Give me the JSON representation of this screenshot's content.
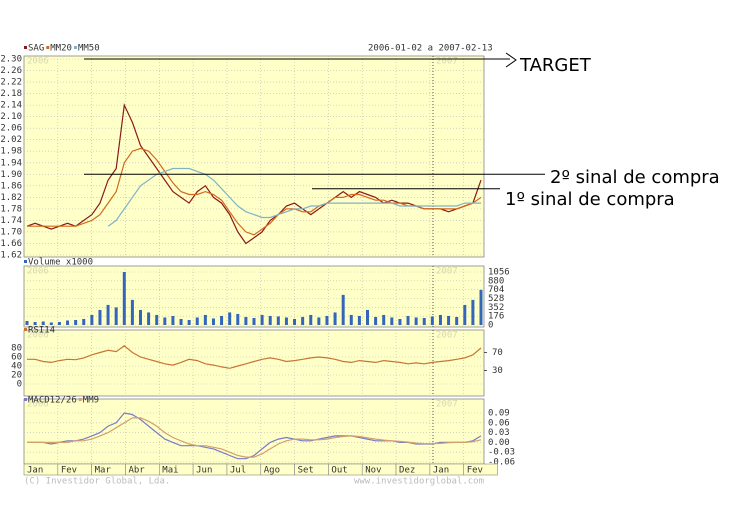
{
  "header": {
    "date_range": "2006-01-02 a 2007-02-13",
    "year_labels": [
      "2006",
      "2007"
    ]
  },
  "footer": {
    "copyright": "(C) Investidor Global, Lda.",
    "site": "www.investidorglobal.com"
  },
  "chart_data": [
    {
      "type": "line",
      "ylim": [
        1.62,
        2.3
      ],
      "yticks": [
        1.62,
        1.66,
        {
          "value": 1.7,
          "label": "1.70"
        },
        1.74,
        1.78,
        1.82,
        1.86,
        {
          "value": 1.9,
          "label": "1.90"
        },
        1.94,
        1.98,
        2.02,
        2.06,
        {
          "value": 2.1,
          "label": "2.10"
        },
        2.14,
        2.18,
        2.22,
        2.26,
        {
          "value": 2.3,
          "label": "2.30"
        }
      ],
      "grid": true,
      "series": [
        {
          "name": "SAG",
          "color": "#8b1a1a",
          "values": [
            1.72,
            1.73,
            1.72,
            1.71,
            1.72,
            1.73,
            1.72,
            1.74,
            1.76,
            1.8,
            1.88,
            1.92,
            2.14,
            2.08,
            2.0,
            1.96,
            1.92,
            1.88,
            1.84,
            1.82,
            1.8,
            1.84,
            1.86,
            1.82,
            1.8,
            1.76,
            1.7,
            1.66,
            1.68,
            1.7,
            1.74,
            1.76,
            1.79,
            1.8,
            1.78,
            1.76,
            1.78,
            1.8,
            1.82,
            1.84,
            1.82,
            1.84,
            1.83,
            1.82,
            1.8,
            1.81,
            1.8,
            1.8,
            1.79,
            1.78,
            1.78,
            1.78,
            1.77,
            1.78,
            1.79,
            1.8,
            1.88
          ]
        },
        {
          "name": "MM20",
          "color": "#d2691e",
          "values": [
            1.72,
            1.72,
            1.72,
            1.72,
            1.72,
            1.72,
            1.72,
            1.73,
            1.74,
            1.76,
            1.8,
            1.84,
            1.94,
            1.98,
            1.99,
            1.98,
            1.95,
            1.91,
            1.87,
            1.84,
            1.83,
            1.83,
            1.84,
            1.83,
            1.81,
            1.77,
            1.73,
            1.7,
            1.69,
            1.71,
            1.73,
            1.76,
            1.78,
            1.78,
            1.77,
            1.77,
            1.79,
            1.8,
            1.82,
            1.82,
            1.83,
            1.83,
            1.82,
            1.81,
            1.81,
            1.8,
            1.8,
            1.79,
            1.79,
            1.78,
            1.78,
            1.78,
            1.78,
            1.78,
            1.79,
            1.8,
            1.82
          ]
        },
        {
          "name": "MM50",
          "color": "#7fb3c8",
          "values": [
            null,
            null,
            null,
            null,
            null,
            null,
            null,
            null,
            null,
            null,
            1.72,
            1.74,
            1.78,
            1.82,
            1.86,
            1.88,
            1.9,
            1.91,
            1.92,
            1.92,
            1.92,
            1.91,
            1.9,
            1.88,
            1.85,
            1.82,
            1.79,
            1.77,
            1.76,
            1.75,
            1.75,
            1.76,
            1.77,
            1.78,
            1.78,
            1.79,
            1.79,
            1.8,
            1.8,
            1.8,
            1.8,
            1.8,
            1.8,
            1.8,
            1.8,
            1.8,
            1.79,
            1.79,
            1.79,
            1.79,
            1.79,
            1.79,
            1.79,
            1.79,
            1.8,
            1.8,
            1.8
          ]
        }
      ],
      "annotations": [
        {
          "text": "TARGET",
          "y": 2.3
        },
        {
          "text": "2º sinal de compra",
          "y": 1.9
        },
        {
          "text": "1º sinal de compra",
          "y": 1.85
        }
      ]
    },
    {
      "type": "bar",
      "ylim": [
        0,
        1056
      ],
      "yticks": [
        0,
        176,
        352,
        528,
        704,
        880,
        1056
      ],
      "series": [
        {
          "name": "Volume x1000",
          "color": "#3366bb",
          "values": [
            80,
            60,
            70,
            50,
            60,
            90,
            100,
            120,
            200,
            300,
            400,
            350,
            1056,
            500,
            300,
            250,
            200,
            150,
            180,
            120,
            100,
            150,
            200,
            130,
            180,
            250,
            220,
            160,
            140,
            200,
            180,
            170,
            150,
            120,
            160,
            200,
            150,
            180,
            250,
            600,
            200,
            180,
            300,
            160,
            200,
            150,
            120,
            180,
            150,
            140,
            170,
            200,
            180,
            160,
            400,
            500,
            700
          ]
        }
      ]
    },
    {
      "type": "line",
      "ylim": [
        0,
        100
      ],
      "yticks": [
        0,
        20,
        40,
        60,
        80
      ],
      "y2lim": [
        0,
        100
      ],
      "y2ticks": [
        70,
        30
      ],
      "series": [
        {
          "name": "RSI14",
          "color": "#c87533",
          "values": [
            55,
            55,
            50,
            48,
            52,
            55,
            54,
            58,
            65,
            70,
            75,
            72,
            85,
            70,
            60,
            55,
            50,
            45,
            42,
            48,
            55,
            52,
            45,
            42,
            38,
            35,
            40,
            45,
            50,
            55,
            58,
            55,
            50,
            52,
            55,
            58,
            60,
            58,
            55,
            50,
            48,
            52,
            50,
            48,
            52,
            50,
            48,
            45,
            47,
            45,
            48,
            50,
            52,
            55,
            58,
            65,
            80
          ]
        }
      ]
    },
    {
      "type": "line",
      "ylim": [
        -0.06,
        0.09
      ],
      "yticks": [
        0.09,
        0.06,
        0.03,
        {
          "value": 0,
          "label": "0.00"
        },
        -0.03,
        -0.06
      ],
      "x_axis_labels": [
        "Jan",
        "Fev",
        "Mar",
        "Abr",
        "Mai",
        "Jun",
        "Jul",
        "Ago",
        "Set",
        "Out",
        "Nov",
        "Dez",
        "Jan",
        "Fev"
      ],
      "series": [
        {
          "name": "MACD12/26",
          "color": "#7a7ac8",
          "values": [
            0,
            0,
            0,
            -0.005,
            0,
            0.005,
            0.005,
            0.01,
            0.02,
            0.03,
            0.05,
            0.06,
            0.09,
            0.085,
            0.07,
            0.05,
            0.03,
            0.01,
            0,
            -0.01,
            -0.01,
            -0.01,
            -0.015,
            -0.02,
            -0.03,
            -0.04,
            -0.05,
            -0.05,
            -0.04,
            -0.02,
            0,
            0.01,
            0.015,
            0.01,
            0.005,
            0.005,
            0.01,
            0.015,
            0.02,
            0.02,
            0.02,
            0.015,
            0.01,
            0.005,
            0.005,
            0.005,
            0,
            0,
            -0.005,
            -0.005,
            -0.005,
            0,
            0,
            0,
            0,
            0.005,
            0.02
          ]
        },
        {
          "name": "MM9",
          "color": "#d2a070",
          "values": [
            0,
            0,
            0,
            0,
            0,
            0,
            0.005,
            0.005,
            0.01,
            0.02,
            0.03,
            0.045,
            0.06,
            0.075,
            0.075,
            0.065,
            0.05,
            0.03,
            0.015,
            0.005,
            -0.005,
            -0.01,
            -0.01,
            -0.015,
            -0.02,
            -0.03,
            -0.04,
            -0.045,
            -0.045,
            -0.035,
            -0.02,
            -0.005,
            0.005,
            0.01,
            0.01,
            0.008,
            0.008,
            0.01,
            0.015,
            0.018,
            0.02,
            0.018,
            0.014,
            0.01,
            0.007,
            0.005,
            0.003,
            0.001,
            -0.002,
            -0.004,
            -0.004,
            -0.003,
            -0.001,
            0,
            0,
            0.002,
            0.008
          ]
        }
      ]
    }
  ]
}
